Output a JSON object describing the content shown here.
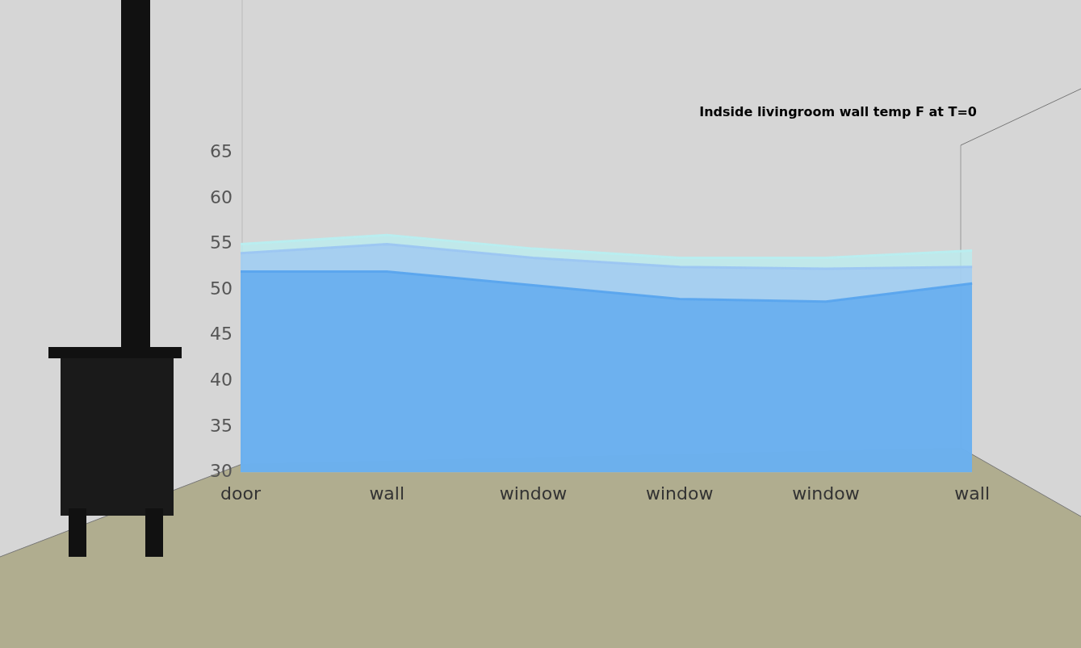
{
  "chart_data": {
    "type": "area",
    "title": "Indside livingroom wall temp F at T=0",
    "categories": [
      "door",
      "wall",
      "window",
      "window",
      "window",
      "wall"
    ],
    "series": [
      {
        "color": "#b8eef0",
        "values": [
          55,
          56,
          54.5,
          53.5,
          53.5,
          54.3
        ]
      },
      {
        "color": "#9cc6f2",
        "values": [
          54,
          55,
          53.5,
          52.5,
          52.3,
          52.5
        ]
      },
      {
        "color": "#5aa5ee",
        "values": [
          52,
          52,
          50.5,
          49,
          48.7,
          50.7
        ]
      }
    ],
    "ylim": [
      30,
      65
    ],
    "yticks": [
      30,
      35,
      40,
      45,
      50,
      55,
      60,
      65
    ],
    "grid": false
  }
}
